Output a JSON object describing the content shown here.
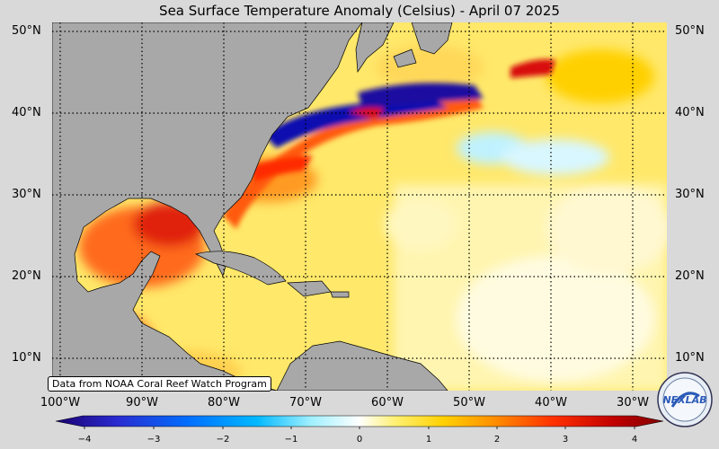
{
  "title": "Sea Surface Temperature Anomaly (Celsius) - April 07 2025",
  "credit": "Data from NOAA Coral Reef Watch Program",
  "logo_text": "NEXLAB",
  "lat_labels": [
    "50°N",
    "40°N",
    "30°N",
    "20°N",
    "10°N"
  ],
  "lon_labels": [
    "100°W",
    "90°W",
    "80°W",
    "70°W",
    "60°W",
    "50°W",
    "40°W",
    "30°W"
  ],
  "colorbar": {
    "ticks": [
      "−4",
      "−3",
      "−2",
      "−1",
      "0",
      "1",
      "2",
      "3",
      "4"
    ],
    "range": [
      -4,
      4
    ],
    "colors": [
      "#1a0070",
      "#2a2ad0",
      "#0070ff",
      "#00b8ff",
      "#a0f0ff",
      "#ffffff",
      "#fff070",
      "#ffd000",
      "#ff9000",
      "#ff3000",
      "#c00000",
      "#800000"
    ]
  },
  "colors": {
    "land": "#a8a8a8",
    "ocean_base": "#ffea7a",
    "warm": "#ff6a1a",
    "hot": "#d81010",
    "cold": "#1010b0",
    "cool": "#bff2ff"
  }
}
